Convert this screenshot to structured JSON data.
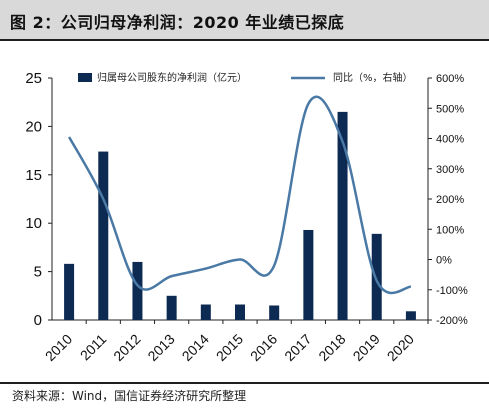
{
  "title": "图 2：公司归母净利润：2020 年业绩已探底",
  "source": "资料来源：Wind，国信证券经济研究所整理",
  "colors": {
    "bar": "#0d2a52",
    "line": "#4a79a5",
    "axis": "#222222"
  },
  "chart_data": {
    "type": "bar+line",
    "categories": [
      "2010",
      "2011",
      "2012",
      "2013",
      "2014",
      "2015",
      "2016",
      "2017",
      "2018",
      "2019",
      "2020"
    ],
    "series": [
      {
        "name": "归属母公司股东的净利润（亿元）",
        "type": "bar",
        "axis": "left",
        "values": [
          5.8,
          17.4,
          6.0,
          2.5,
          1.6,
          1.6,
          1.5,
          9.3,
          21.5,
          8.9,
          0.9
        ]
      },
      {
        "name": "同比（%，右轴）",
        "type": "line",
        "axis": "right",
        "smooth": true,
        "values": [
          405,
          200,
          -85,
          -55,
          -30,
          0,
          -20,
          515,
          390,
          -70,
          -90
        ]
      }
    ],
    "left_axis": {
      "ylim": [
        0,
        25
      ],
      "ticks": [
        "0",
        "5",
        "10",
        "15",
        "20",
        "25"
      ]
    },
    "right_axis": {
      "ylim": [
        -200,
        600
      ],
      "ticks": [
        "-200%",
        "-100%",
        "0%",
        "100%",
        "200%",
        "300%",
        "400%",
        "500%",
        "600%"
      ]
    },
    "legend": "top",
    "grid": false
  }
}
